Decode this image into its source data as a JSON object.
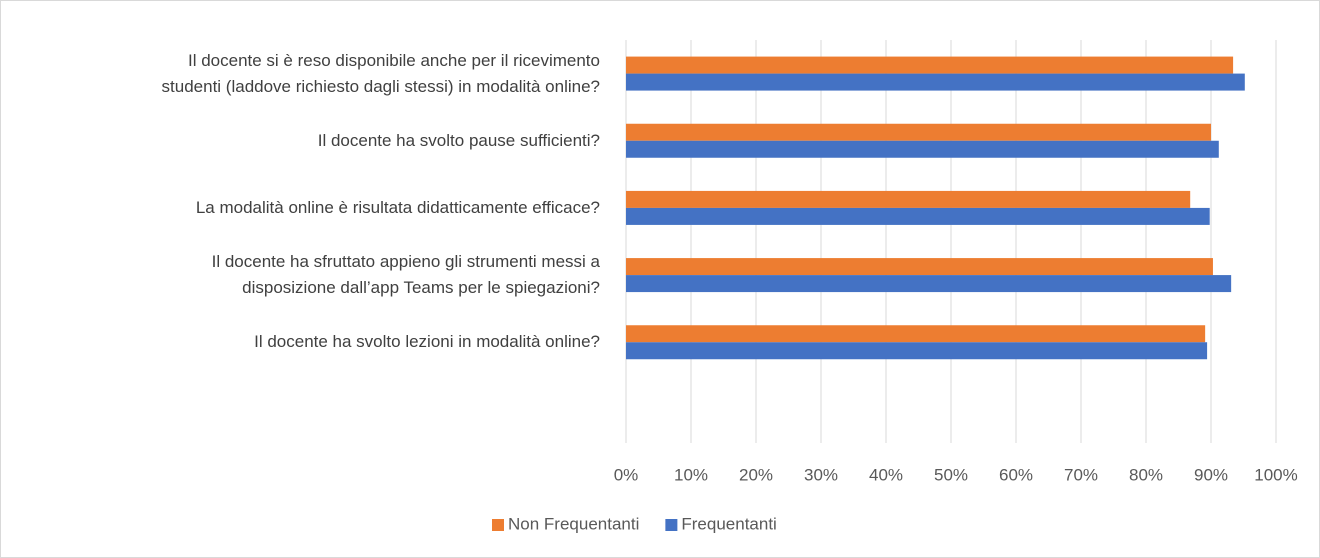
{
  "chart_data": {
    "type": "bar",
    "orientation": "horizontal",
    "categories": [
      "Il docente si è reso disponibile anche per il ricevimento\nstudenti (laddove richiesto dagli stessi) in modalità online?",
      "Il docente ha svolto pause sufficienti?",
      "La modalità online è risultata didatticamente efficace?",
      "Il docente ha sfruttato appieno gli strumenti messi a\ndisposizione dall’app Teams per le spiegazioni?",
      "Il docente ha svolto lezioni in modalità online?",
      null
    ],
    "series": [
      {
        "name": "Non Frequentanti",
        "color": "#ed7d31",
        "values": [
          93.4,
          90,
          86.8,
          90.3,
          89.1,
          null
        ]
      },
      {
        "name": "Frequentanti",
        "color": "#4472c4",
        "values": [
          95.2,
          91.2,
          89.8,
          93.1,
          89.4,
          null
        ]
      }
    ],
    "xlim": [
      0,
      100
    ],
    "xticks": [
      {
        "value": 0,
        "label": "0%"
      },
      {
        "value": 10,
        "label": "10%"
      },
      {
        "value": 20,
        "label": "20%"
      },
      {
        "value": 30,
        "label": "30%"
      },
      {
        "value": 40,
        "label": "40%"
      },
      {
        "value": 50,
        "label": "50%"
      },
      {
        "value": 60,
        "label": "60%"
      },
      {
        "value": 70,
        "label": "70%"
      },
      {
        "value": 80,
        "label": "80%"
      },
      {
        "value": 90,
        "label": "90%"
      },
      {
        "value": 100,
        "label": "100%"
      }
    ],
    "grid": true,
    "legend": "bottom"
  }
}
